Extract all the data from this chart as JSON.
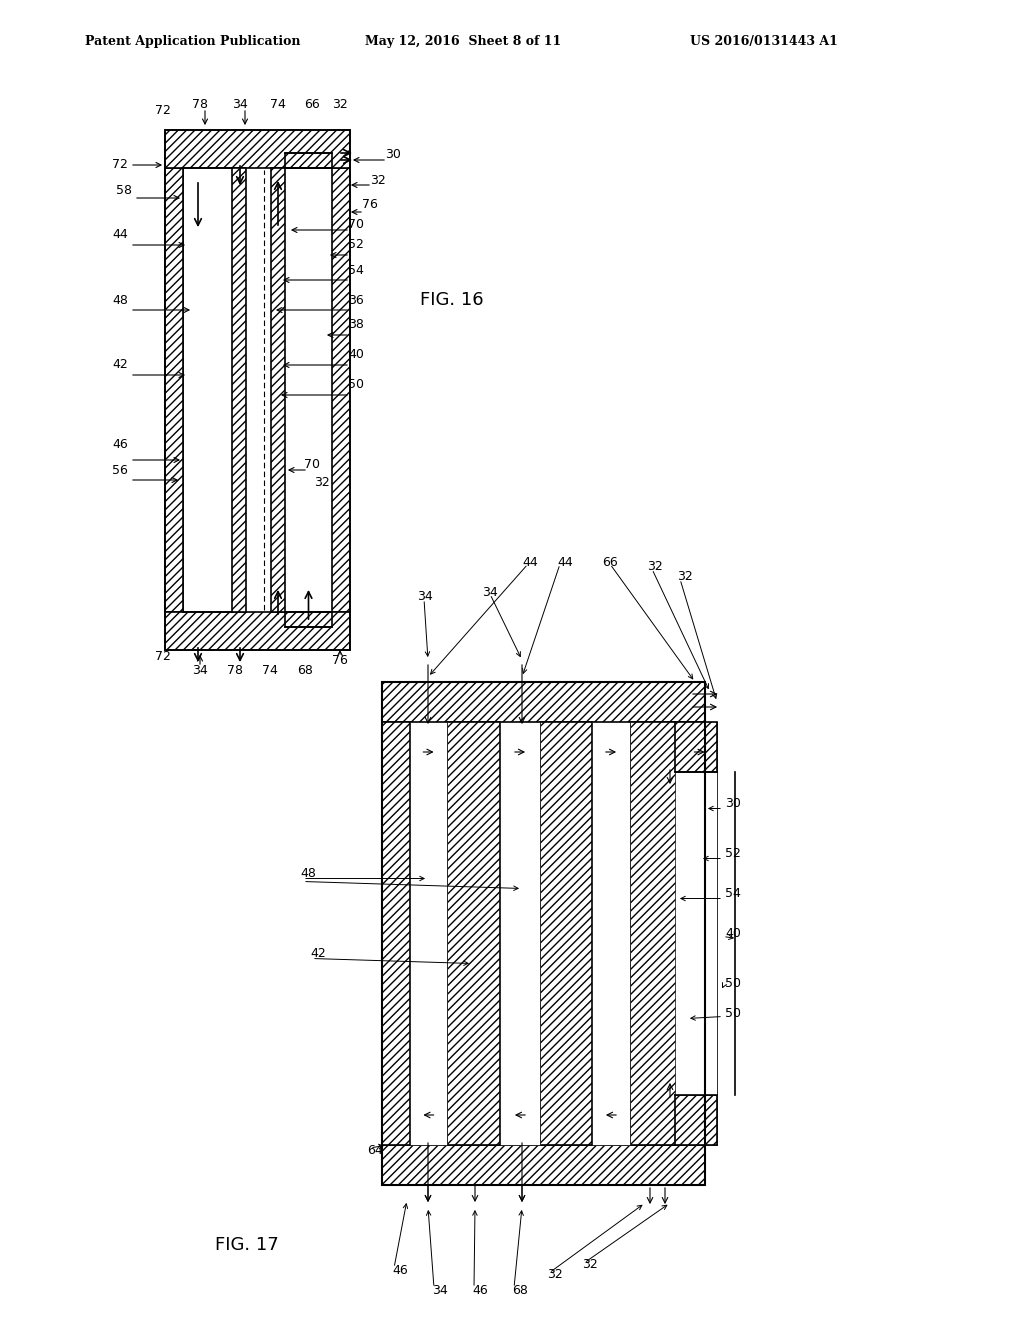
{
  "bg_color": "#ffffff",
  "header_left": "Patent Application Publication",
  "header_center": "May 12, 2016  Sheet 8 of 11",
  "header_right": "US 2016/0131443 A1",
  "fig16_label": "FIG. 16",
  "fig17_label": "FIG. 17",
  "line_color": "#000000",
  "hatch_color": "#000000",
  "hatch_pattern": "////",
  "title_fontsize": 11,
  "label_fontsize": 9
}
